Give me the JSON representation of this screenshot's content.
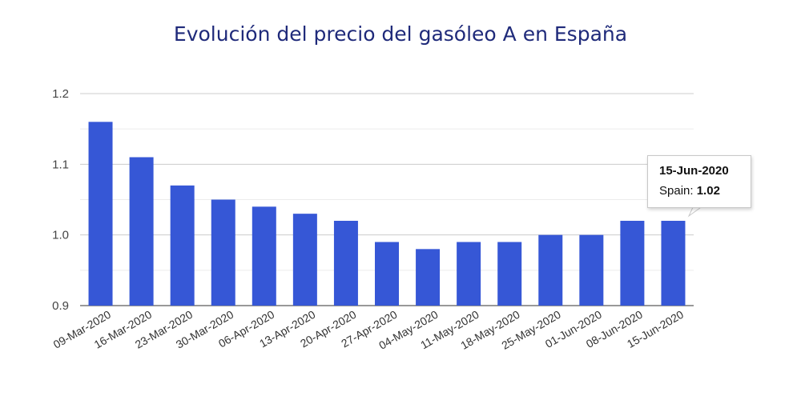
{
  "chart_data": {
    "type": "bar",
    "title": "Evolución del precio del gasóleo A en España",
    "xlabel": "",
    "ylabel": "",
    "categories": [
      "09-Mar-2020",
      "16-Mar-2020",
      "23-Mar-2020",
      "30-Mar-2020",
      "06-Apr-2020",
      "13-Apr-2020",
      "20-Apr-2020",
      "27-Apr-2020",
      "04-May-2020",
      "11-May-2020",
      "18-May-2020",
      "25-May-2020",
      "01-Jun-2020",
      "08-Jun-2020",
      "15-Jun-2020"
    ],
    "series": [
      {
        "name": "Spain",
        "values": [
          1.16,
          1.11,
          1.07,
          1.05,
          1.04,
          1.03,
          1.02,
          0.99,
          0.98,
          0.99,
          0.99,
          1.0,
          1.0,
          1.02,
          1.02
        ]
      }
    ],
    "ylim": [
      0.9,
      1.2
    ],
    "yticks": [
      "0.9",
      "1.0",
      "1.1",
      "1.2"
    ],
    "grid": true,
    "bar_color": "#3657d6",
    "tooltip": {
      "date": "15-Jun-2020",
      "series_label": "Spain:",
      "value": "1.02"
    }
  }
}
